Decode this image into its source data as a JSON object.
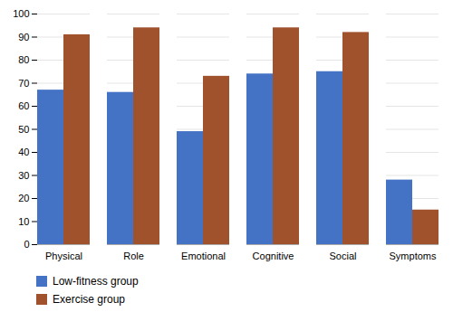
{
  "chart_data": {
    "type": "bar",
    "categories": [
      "Physical",
      "Role",
      "Emotional",
      "Cognitive",
      "Social",
      "Symptoms"
    ],
    "series": [
      {
        "name": "Low-fitness group",
        "color": "#4472C4",
        "values": [
          67,
          66,
          49,
          74,
          75,
          28
        ]
      },
      {
        "name": "Exercise group",
        "color": "#A0522D",
        "values": [
          91,
          94,
          73,
          94,
          92,
          15
        ]
      }
    ],
    "ylim": [
      0,
      100
    ],
    "yticks": [
      0,
      10,
      20,
      30,
      40,
      50,
      60,
      70,
      80,
      90,
      100
    ],
    "grid": true,
    "legend": "lower left"
  }
}
